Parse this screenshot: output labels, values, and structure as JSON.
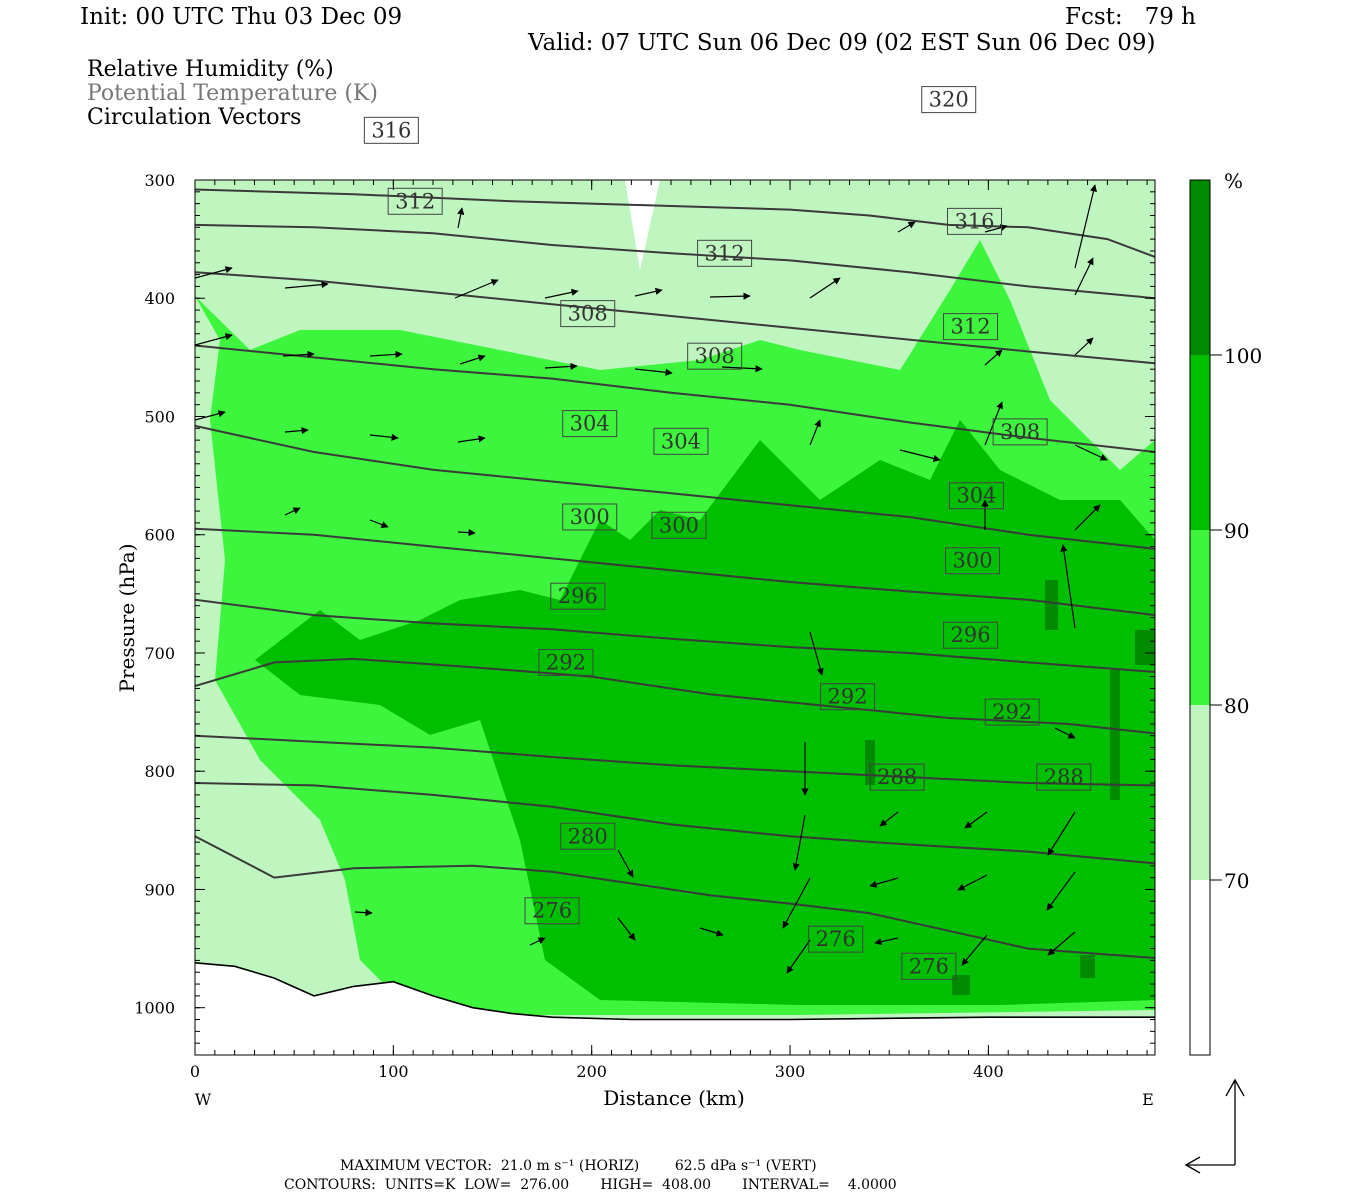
{
  "header": {
    "init": "Init: 00 UTC Thu 03 Dec 09",
    "fcst": "Fcst:   79 h",
    "valid": "Valid: 07 UTC Sun 06 Dec 09 (02 EST Sun 06 Dec 09)"
  },
  "legend": {
    "line1": "Relative Humidity (%)",
    "line2": "Potential Temperature (K)",
    "line3": "Circulation Vectors"
  },
  "footer": {
    "line1": "MAXIMUM VECTOR:  21.0 m s⁻¹ (HORIZ)        62.5 dPa s⁻¹ (VERT)",
    "line2": "CONTOURS:  UNITS=K  LOW=  276.00       HIGH=  408.00       INTERVAL=    4.0000"
  },
  "colors": {
    "rh_70_80": "#bff5bf",
    "rh_80_90": "#3df53d",
    "rh_90_100": "#00be00",
    "rh_100": "#008a00",
    "theta_line": "#3a3a3a",
    "terrain_line": "#000000"
  },
  "chart_data": {
    "type": "cross-section",
    "xlabel": "Distance (km)",
    "ylabel": "Pressure (hPa)",
    "xlim": [
      0,
      484
    ],
    "ylim": [
      1040,
      300
    ],
    "x_ticks": [
      0,
      100,
      200,
      300,
      400
    ],
    "y_ticks": [
      300,
      400,
      500,
      600,
      700,
      800,
      900,
      1000
    ],
    "x_end_labels": {
      "left": "W",
      "right": "E"
    },
    "colorbar": {
      "unit": "%",
      "levels": [
        70,
        80,
        90,
        100
      ],
      "labels": [
        "70",
        "80",
        "90",
        "100"
      ]
    },
    "theta_contours": [
      {
        "value": 276,
        "label": "276",
        "label_pos": [
          180,
          918
        ],
        "points": [
          [
            0,
            855
          ],
          [
            40,
            890
          ],
          [
            80,
            882
          ],
          [
            140,
            880
          ],
          [
            180,
            885
          ],
          [
            220,
            895
          ],
          [
            260,
            905
          ],
          [
            300,
            912
          ],
          [
            340,
            920
          ],
          [
            380,
            935
          ],
          [
            420,
            950
          ],
          [
            460,
            955
          ],
          [
            484,
            958
          ]
        ]
      },
      {
        "value": 276,
        "label": "276",
        "label_pos": [
          323,
          942
        ],
        "points": []
      },
      {
        "value": 276,
        "label": "276",
        "label_pos": [
          370,
          965
        ],
        "points": []
      },
      {
        "value": 280,
        "label": "280",
        "label_pos": [
          198,
          855
        ],
        "points": [
          [
            0,
            810
          ],
          [
            60,
            812
          ],
          [
            120,
            820
          ],
          [
            180,
            830
          ],
          [
            240,
            845
          ],
          [
            300,
            855
          ],
          [
            360,
            862
          ],
          [
            420,
            868
          ],
          [
            484,
            878
          ]
        ]
      },
      {
        "value": 288,
        "label": "288",
        "label_pos": [
          354,
          805
        ],
        "points": [
          [
            0,
            770
          ],
          [
            60,
            775
          ],
          [
            120,
            780
          ],
          [
            180,
            788
          ],
          [
            240,
            795
          ],
          [
            300,
            800
          ],
          [
            360,
            805
          ],
          [
            420,
            810
          ],
          [
            484,
            812
          ]
        ]
      },
      {
        "value": 288,
        "label": "288",
        "label_pos": [
          438,
          805
        ],
        "points": []
      },
      {
        "value": 292,
        "label": "292",
        "label_pos": [
          187,
          708
        ],
        "points": [
          [
            0,
            728
          ],
          [
            40,
            708
          ],
          [
            80,
            705
          ],
          [
            140,
            712
          ],
          [
            200,
            720
          ],
          [
            260,
            735
          ],
          [
            320,
            745
          ],
          [
            380,
            755
          ],
          [
            440,
            760
          ],
          [
            484,
            768
          ]
        ]
      },
      {
        "value": 292,
        "label": "292",
        "label_pos": [
          329,
          737
        ],
        "points": []
      },
      {
        "value": 292,
        "label": "292",
        "label_pos": [
          412,
          750
        ],
        "points": []
      },
      {
        "value": 296,
        "label": "296",
        "label_pos": [
          193,
          652
        ],
        "points": [
          [
            0,
            655
          ],
          [
            60,
            668
          ],
          [
            120,
            675
          ],
          [
            180,
            680
          ],
          [
            240,
            688
          ],
          [
            300,
            695
          ],
          [
            360,
            700
          ],
          [
            420,
            708
          ],
          [
            484,
            716
          ]
        ]
      },
      {
        "value": 296,
        "label": "296",
        "label_pos": [
          391,
          685
        ],
        "points": []
      },
      {
        "value": 300,
        "label": "300",
        "label_pos": [
          199,
          585
        ],
        "points": [
          [
            0,
            595
          ],
          [
            60,
            600
          ],
          [
            120,
            610
          ],
          [
            180,
            620
          ],
          [
            240,
            630
          ],
          [
            300,
            640
          ],
          [
            360,
            648
          ],
          [
            420,
            655
          ],
          [
            484,
            668
          ]
        ]
      },
      {
        "value": 300,
        "label": "300",
        "label_pos": [
          244,
          592
        ],
        "points": []
      },
      {
        "value": 300,
        "label": "300",
        "label_pos": [
          392,
          622
        ],
        "points": []
      },
      {
        "value": 304,
        "label": "304",
        "label_pos": [
          199,
          506
        ],
        "points": [
          [
            0,
            508
          ],
          [
            60,
            530
          ],
          [
            120,
            545
          ],
          [
            180,
            555
          ],
          [
            240,
            565
          ],
          [
            300,
            575
          ],
          [
            360,
            585
          ],
          [
            420,
            600
          ],
          [
            484,
            612
          ]
        ]
      },
      {
        "value": 304,
        "label": "304",
        "label_pos": [
          245,
          521
        ],
        "points": []
      },
      {
        "value": 304,
        "label": "304",
        "label_pos": [
          394,
          567
        ],
        "points": []
      },
      {
        "value": 308,
        "label": "308",
        "label_pos": [
          198,
          413
        ],
        "points": [
          [
            0,
            440
          ],
          [
            60,
            450
          ],
          [
            120,
            460
          ],
          [
            180,
            468
          ],
          [
            240,
            480
          ],
          [
            300,
            490
          ],
          [
            360,
            505
          ],
          [
            420,
            518
          ],
          [
            484,
            530
          ]
        ]
      },
      {
        "value": 308,
        "label": "308",
        "label_pos": [
          262,
          449
        ],
        "points": []
      },
      {
        "value": 308,
        "label": "308",
        "label_pos": [
          416,
          513
        ],
        "points": []
      },
      {
        "value": 312,
        "label": "312",
        "label_pos": [
          111,
          318
        ],
        "points": [
          [
            0,
            378
          ],
          [
            60,
            385
          ],
          [
            120,
            395
          ],
          [
            180,
            405
          ],
          [
            240,
            415
          ],
          [
            300,
            425
          ],
          [
            360,
            435
          ],
          [
            420,
            445
          ],
          [
            484,
            455
          ]
        ]
      },
      {
        "value": 312,
        "label": "312",
        "label_pos": [
          267,
          362
        ],
        "points": []
      },
      {
        "value": 312,
        "label": "312",
        "label_pos": [
          391,
          424
        ],
        "points": []
      },
      {
        "value": 316,
        "label": "316",
        "label_pos": [
          99,
          258
        ],
        "points": [
          [
            0,
            338
          ],
          [
            60,
            340
          ],
          [
            120,
            345
          ],
          [
            180,
            355
          ],
          [
            240,
            362
          ],
          [
            300,
            368
          ],
          [
            360,
            378
          ],
          [
            420,
            390
          ],
          [
            484,
            400
          ]
        ]
      },
      {
        "value": 316,
        "label": "316",
        "label_pos": [
          393,
          335
        ],
        "points": []
      },
      {
        "value": 320,
        "label": "320",
        "label_pos": [
          380,
          232
        ],
        "points": [
          [
            0,
            308
          ],
          [
            80,
            312
          ],
          [
            160,
            318
          ],
          [
            240,
            322
          ],
          [
            300,
            325
          ],
          [
            340,
            330
          ],
          [
            380,
            338
          ],
          [
            420,
            340
          ],
          [
            460,
            350
          ],
          [
            484,
            365
          ]
        ]
      }
    ],
    "terrain_surface": [
      [
        0,
        962
      ],
      [
        20,
        965
      ],
      [
        40,
        975
      ],
      [
        60,
        990
      ],
      [
        80,
        982
      ],
      [
        100,
        978
      ],
      [
        120,
        990
      ],
      [
        140,
        1000
      ],
      [
        160,
        1005
      ],
      [
        180,
        1008
      ],
      [
        220,
        1010
      ],
      [
        300,
        1010
      ],
      [
        400,
        1008
      ],
      [
        484,
        1008
      ]
    ]
  }
}
